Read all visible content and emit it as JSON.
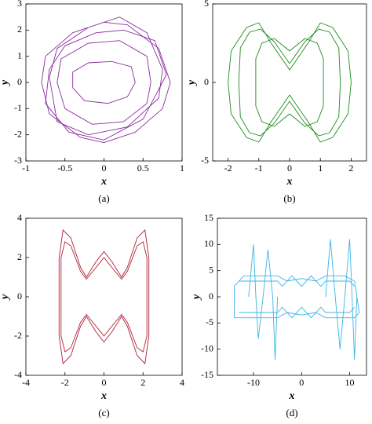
{
  "chart_data": [
    {
      "type": "line",
      "caption": "(a)",
      "xlabel": "x",
      "ylabel": "y",
      "xlim": [
        -1,
        1
      ],
      "ylim": [
        -3,
        3
      ],
      "xticks": [
        -1,
        -0.5,
        0,
        0.5,
        1
      ],
      "yticks": [
        -3,
        -2,
        -1,
        0,
        1,
        2,
        3
      ],
      "series": [
        {
          "color": "#8b2d9e",
          "x": [
            0.85,
            0.7,
            0.3,
            0,
            -0.4,
            -0.75,
            -0.8,
            -0.7,
            -0.3,
            0,
            0.4,
            0.75,
            0.85,
            null,
            0.4,
            0.35,
            0.1,
            -0.2,
            -0.4,
            -0.4,
            -0.25,
            0.05,
            0.3,
            0.4,
            null,
            0.6,
            0.55,
            0.2,
            -0.2,
            -0.55,
            -0.6,
            -0.5,
            -0.15,
            0.25,
            0.55,
            0.6,
            null,
            0.75,
            0.55,
            0.2,
            -0.2,
            -0.6,
            -0.7,
            -0.6,
            -0.2,
            0.3,
            0.7,
            0.75,
            null,
            0.8,
            0.65,
            0.25,
            -0.1,
            -0.5,
            -0.7,
            -0.75,
            -0.45,
            0,
            0.5,
            0.8
          ],
          "y": [
            0,
            1.3,
            2.2,
            2.3,
            1.9,
            1.0,
            0,
            -1.2,
            -2.1,
            -2.3,
            -1.9,
            -1.0,
            0,
            null,
            0,
            0.6,
            0.8,
            0.75,
            0.4,
            -0.2,
            -0.7,
            -0.8,
            -0.55,
            0,
            null,
            0,
            1,
            1.6,
            1.5,
            0.9,
            0,
            -1,
            -1.6,
            -1.5,
            -0.8,
            0,
            null,
            0.5,
            1.9,
            2.5,
            2.1,
            1.3,
            0.2,
            -1.5,
            -2.0,
            -1.7,
            -0.6,
            0.5,
            null,
            0.3,
            1.6,
            2.0,
            1.9,
            1.4,
            0.5,
            -0.8,
            -1.9,
            -2.2,
            -1.4,
            0.3
          ]
        }
      ]
    },
    {
      "type": "line",
      "caption": "(b)",
      "xlabel": "x",
      "ylabel": "y",
      "xlim": [
        -2.5,
        2.5
      ],
      "ylim": [
        -5,
        5
      ],
      "xticks": [
        -2,
        -1,
        0,
        1,
        2
      ],
      "yticks": [
        -5,
        0,
        5
      ],
      "series": [
        {
          "color": "#1e8a1e",
          "x": [
            0,
            -0.6,
            -1,
            -1.4,
            -1.9,
            -2,
            -1.9,
            -1.4,
            -1,
            -0.6,
            0,
            0.6,
            1,
            1.4,
            1.9,
            2,
            1.9,
            1.4,
            1,
            0.6,
            0,
            null,
            0,
            -0.5,
            -0.9,
            -1.1,
            -1.1,
            -1.1,
            -0.9,
            -0.5,
            0,
            0.5,
            0.9,
            1.1,
            1.1,
            1.1,
            0.9,
            0.5,
            0,
            null,
            0,
            -0.5,
            -0.95,
            -1.3,
            -1.6,
            -1.65,
            -1.6,
            -1.3,
            -0.95,
            -0.5,
            0,
            0.5,
            0.95,
            1.3,
            1.6,
            1.65,
            1.6,
            1.3,
            0.95,
            0.5,
            0
          ],
          "y": [
            0.8,
            2.5,
            3.8,
            3.5,
            2,
            0,
            -2,
            -3.5,
            -3.8,
            -2.5,
            -0.8,
            -2.5,
            -3.8,
            -3.5,
            -2,
            0,
            2,
            3.5,
            3.8,
            2.5,
            0.8,
            null,
            2,
            2.8,
            2.5,
            1.5,
            0,
            -1.5,
            -2.5,
            -2.8,
            -2,
            -2.8,
            -2.5,
            -1.5,
            0,
            1.5,
            2.5,
            2.8,
            2,
            null,
            1.2,
            2.6,
            3.4,
            3.2,
            2.2,
            0,
            -2.2,
            -3.2,
            -3.4,
            -2.6,
            -1.2,
            -2.6,
            -3.4,
            -3.2,
            -2.2,
            0,
            2.2,
            3.2,
            3.4,
            2.6,
            1.2
          ]
        }
      ]
    },
    {
      "type": "line",
      "caption": "(c)",
      "xlabel": "x",
      "ylabel": "y",
      "xlim": [
        -4,
        4
      ],
      "ylim": [
        -4,
        4
      ],
      "xticks": [
        -4,
        -2,
        0,
        2,
        4
      ],
      "yticks": [
        -4,
        -2,
        0,
        2,
        4
      ],
      "series": [
        {
          "color": "#b0203a",
          "x": [
            -2.3,
            -2.3,
            -2.1,
            -1.7,
            -1.2,
            -0.9,
            -0.4,
            0,
            0.4,
            0.9,
            1.2,
            1.7,
            2.1,
            2.3,
            2.3,
            2.3,
            2.1,
            1.7,
            1.2,
            0.9,
            0.4,
            0,
            -0.4,
            -0.9,
            -1.2,
            -1.7,
            -2.1,
            -2.3,
            -2.3,
            null,
            -2.2,
            -2.2,
            -2.0,
            -1.7,
            -1.2,
            -0.9,
            -0.4,
            0,
            0.4,
            0.9,
            1.2,
            1.7,
            2.0,
            2.2,
            2.2,
            2.2,
            2.0,
            1.7,
            1.2,
            0.9,
            0.4,
            0,
            -0.4,
            -0.9,
            -1.2,
            -1.7,
            -2.0,
            -2.2,
            -2.2
          ],
          "y": [
            0,
            2,
            3.4,
            3.0,
            1.5,
            1.0,
            1.8,
            2.3,
            1.8,
            1.0,
            1.5,
            3.0,
            3.4,
            2,
            0,
            -2,
            -3.4,
            -3.0,
            -1.5,
            -1.0,
            -1.8,
            -2.3,
            -1.8,
            -1.0,
            -1.5,
            -3.0,
            -3.4,
            -2,
            0,
            null,
            0,
            2,
            2.8,
            2.6,
            1.3,
            0.9,
            1.5,
            2.0,
            1.5,
            0.9,
            1.3,
            2.6,
            2.8,
            2,
            0,
            -2,
            -2.8,
            -2.6,
            -1.3,
            -0.9,
            -1.5,
            -2.0,
            -1.5,
            -0.9,
            -1.3,
            -2.6,
            -2.8,
            -2,
            0
          ]
        }
      ]
    },
    {
      "type": "line",
      "caption": "(d)",
      "xlabel": "x",
      "ylabel": "y",
      "xlim": [
        -17.5,
        13.5
      ],
      "ylim": [
        -15,
        15
      ],
      "xticks": [
        -10,
        0,
        10
      ],
      "yticks": [
        -15,
        -10,
        -5,
        0,
        5,
        10,
        15
      ],
      "series": [
        {
          "color": "#3cb4e6",
          "x": [
            -14,
            -14,
            -12,
            -5,
            -3,
            0,
            3,
            5,
            9,
            11,
            12,
            11,
            5,
            3,
            0,
            -3,
            -5,
            -12,
            -14,
            null,
            -11,
            -10,
            -9.5,
            -9,
            -8,
            -7,
            -6,
            -5.5,
            -5,
            null,
            5,
            6,
            7,
            8,
            9,
            10,
            10.5,
            11,
            11.5,
            null,
            -13,
            -12,
            -5,
            -4,
            -2,
            0,
            2,
            4,
            5,
            10,
            11,
            null,
            11,
            10,
            5,
            4,
            2,
            0,
            -2,
            -4,
            -5,
            -12,
            -13
          ],
          "y": [
            -4,
            2,
            4,
            4,
            3,
            3.5,
            3,
            4,
            4,
            3,
            -3,
            -4,
            -4,
            -3,
            -3.5,
            -3,
            -4,
            -4,
            -4,
            null,
            0,
            10,
            0,
            -8,
            0,
            9,
            0,
            -12,
            0,
            null,
            0,
            11,
            0,
            -10,
            0,
            11,
            0,
            -12,
            0,
            null,
            3,
            3,
            3,
            2,
            4,
            2,
            4,
            2,
            3,
            3,
            2,
            null,
            -2,
            -3,
            -3,
            -2,
            -4,
            -2,
            -4,
            -2,
            -3,
            -3,
            -3
          ]
        }
      ]
    }
  ]
}
